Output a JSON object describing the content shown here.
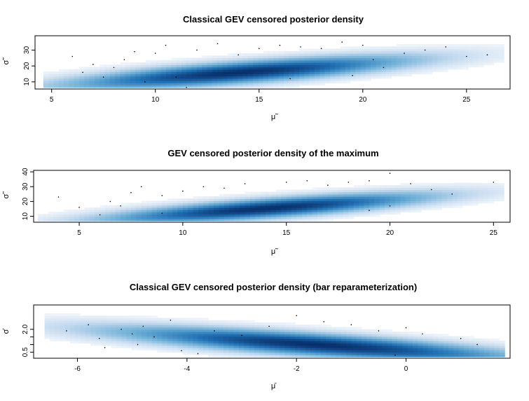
{
  "chart_data": [
    {
      "type": "heatmap",
      "title": "Classical GEV censored posterior density",
      "xlabel": "μ̃",
      "ylabel": "σ̃",
      "xlim": [
        4.2,
        27.1
      ],
      "ylim": [
        5.5,
        39
      ],
      "xticks": [
        5,
        10,
        15,
        20,
        25
      ],
      "yticks": [
        10,
        20,
        30
      ],
      "grid": false,
      "legend": "none",
      "colormap": [
        "#ffffff",
        "#c6dbef",
        "#6baed6",
        "#2171b5",
        "#08306b"
      ],
      "density": {
        "mode_x": 14.0,
        "mode_y": 16.0,
        "spread_x": 4.2,
        "spread_y": 4.6,
        "tilt": 0.85,
        "x_range": [
          4.6,
          26.8
        ],
        "y_range": [
          6.5,
          38
        ]
      },
      "points": [
        [
          6,
          26
        ],
        [
          7,
          21
        ],
        [
          7.5,
          13
        ],
        [
          8.5,
          24
        ],
        [
          9,
          29
        ],
        [
          9.5,
          10
        ],
        [
          10.5,
          33
        ],
        [
          11,
          13
        ],
        [
          11.5,
          6.5
        ],
        [
          12,
          30
        ],
        [
          13,
          34
        ],
        [
          14,
          27
        ],
        [
          15,
          31
        ],
        [
          16,
          33
        ],
        [
          17,
          32
        ],
        [
          18,
          31
        ],
        [
          19,
          35
        ],
        [
          20,
          33
        ],
        [
          20.5,
          24
        ],
        [
          21,
          19
        ],
        [
          22,
          28
        ],
        [
          23,
          30
        ],
        [
          24,
          32
        ],
        [
          25,
          26
        ],
        [
          26,
          27
        ],
        [
          19.5,
          14
        ],
        [
          16.5,
          12
        ],
        [
          8,
          19
        ],
        [
          6.5,
          16
        ],
        [
          10,
          28
        ]
      ]
    },
    {
      "type": "heatmap",
      "title": "GEV censored posterior density of the maximum",
      "xlabel": "μ̃",
      "ylabel": "σ̃",
      "xlim": [
        2.8,
        25.8
      ],
      "ylim": [
        6,
        41
      ],
      "xticks": [
        5,
        10,
        15,
        20,
        25
      ],
      "yticks": [
        10,
        20,
        30,
        40
      ],
      "grid": false,
      "legend": "none",
      "colormap": [
        "#ffffff",
        "#c6dbef",
        "#6baed6",
        "#2171b5",
        "#08306b"
      ],
      "density": {
        "mode_x": 14.0,
        "mode_y": 15.5,
        "spread_x": 4.0,
        "spread_y": 4.4,
        "tilt": 0.9,
        "x_range": [
          3.0,
          25.5
        ],
        "y_range": [
          7,
          40
        ]
      },
      "points": [
        [
          4,
          23
        ],
        [
          5,
          16
        ],
        [
          6,
          11
        ],
        [
          7,
          17
        ],
        [
          7.5,
          26
        ],
        [
          8,
          30
        ],
        [
          9,
          24
        ],
        [
          10,
          27
        ],
        [
          11,
          30
        ],
        [
          12,
          29
        ],
        [
          13,
          32
        ],
        [
          15,
          33
        ],
        [
          16,
          34
        ],
        [
          17,
          31
        ],
        [
          18,
          33
        ],
        [
          19,
          34
        ],
        [
          20,
          39
        ],
        [
          21,
          32
        ],
        [
          22,
          28
        ],
        [
          23,
          25
        ],
        [
          20,
          17
        ],
        [
          19,
          14
        ],
        [
          9,
          12
        ],
        [
          25,
          33
        ],
        [
          6.5,
          20
        ]
      ]
    },
    {
      "type": "heatmap",
      "title": "Classical GEV censored posterior density (bar reparameterization)",
      "xlabel": "μ̄",
      "ylabel": "σ̄",
      "xlim": [
        -6.8,
        1.9
      ],
      "ylim": [
        0.1,
        3.6
      ],
      "xticks": [
        -6,
        -4,
        -2,
        0
      ],
      "yticks": [
        0.5,
        1.0,
        1.5,
        2.0
      ],
      "ytick_labels": [
        "0.5",
        "",
        "",
        "2.0"
      ],
      "grid": false,
      "legend": "none",
      "colormap": [
        "#ffffff",
        "#c6dbef",
        "#6baed6",
        "#2171b5",
        "#08306b"
      ],
      "density": {
        "mode_x": -1.6,
        "mode_y": 1.0,
        "spread_x": 1.9,
        "spread_y": 0.5,
        "tilt": -0.9,
        "x_range": [
          -6.6,
          1.8
        ],
        "y_range": [
          0.2,
          3.5
        ]
      },
      "points": [
        [
          -6.2,
          1.9
        ],
        [
          -5.8,
          2.3
        ],
        [
          -5.6,
          1.4
        ],
        [
          -5.2,
          2.0
        ],
        [
          -5,
          1.7
        ],
        [
          -4.8,
          2.2
        ],
        [
          -4.9,
          1.0
        ],
        [
          -4.6,
          1.5
        ],
        [
          -4.3,
          2.6
        ],
        [
          -3.8,
          0.4
        ],
        [
          -3.5,
          1.9
        ],
        [
          -3,
          1.6
        ],
        [
          -2.5,
          2.2
        ],
        [
          -2,
          2.9
        ],
        [
          -1.5,
          2.5
        ],
        [
          -1,
          2.3
        ],
        [
          -0.5,
          1.9
        ],
        [
          0,
          2.1
        ],
        [
          0.3,
          1.7
        ],
        [
          1,
          1.4
        ],
        [
          1.3,
          1.0
        ],
        [
          -0.2,
          0.3
        ],
        [
          -5.5,
          0.8
        ],
        [
          -4.1,
          0.6
        ]
      ]
    }
  ]
}
